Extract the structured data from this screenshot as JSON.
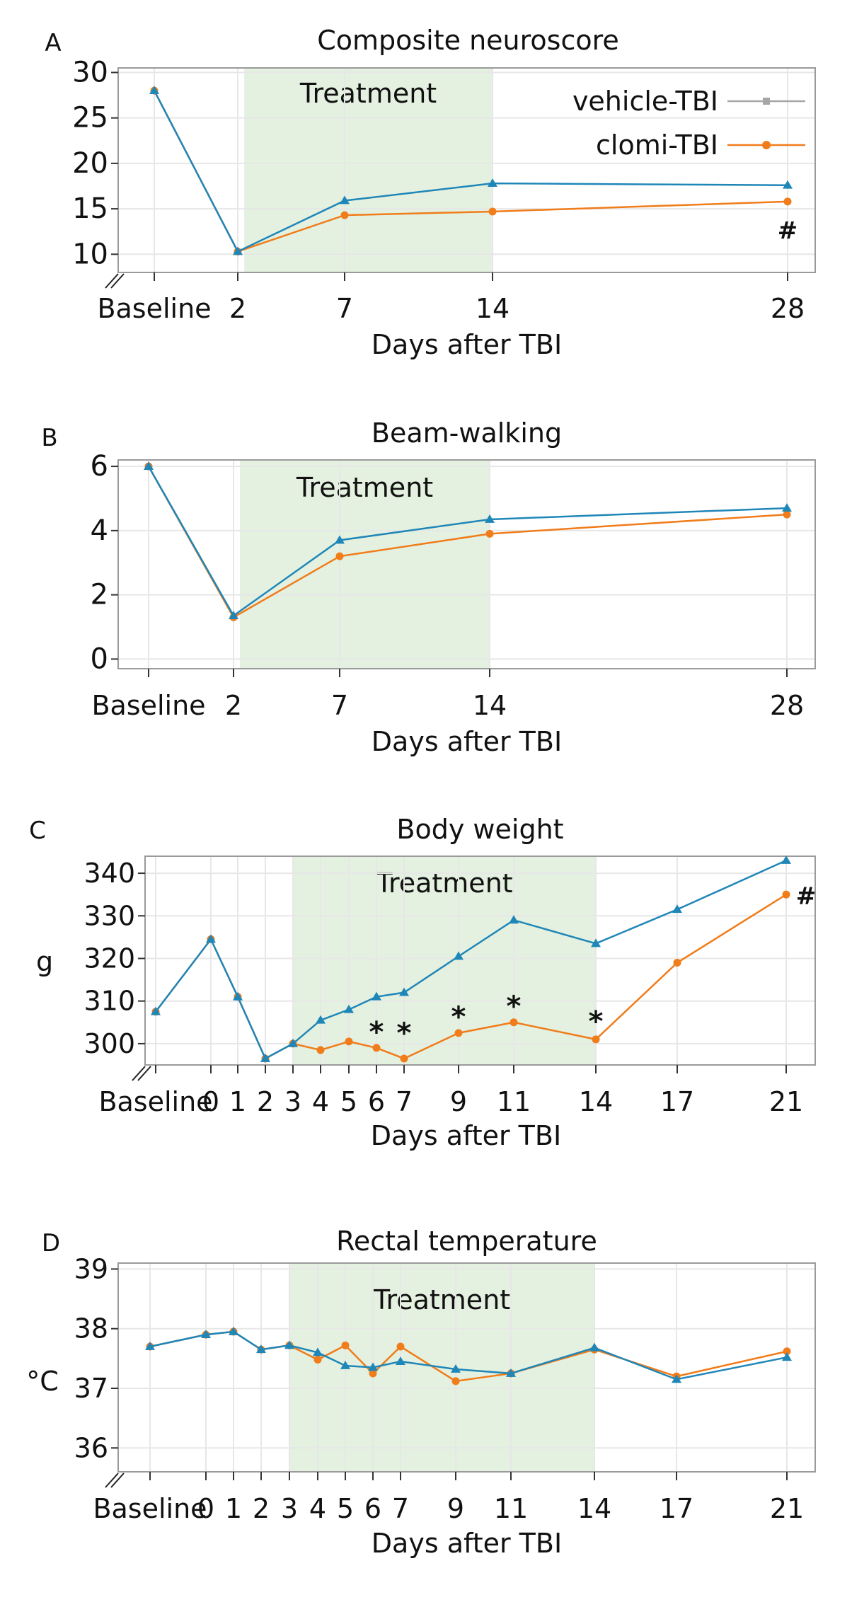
{
  "colors": {
    "vehicle": "#1f86b8",
    "clomi": "#f07c1a",
    "treatment": "#e4f1e0",
    "frame": "#9a9a9a",
    "grid": "#e7e7e7",
    "legend_vehicle": "#a6a6a6"
  },
  "legend": {
    "vehicle": "vehicle-TBI",
    "clomi": "clomi-TBI"
  },
  "chart_data": [
    {
      "type": "line",
      "panel": "A",
      "title": "Composite neuroscore",
      "xlabel": "Days after TBI",
      "ylabel": "",
      "treatment_label": "Treatment",
      "treatment_span": [
        2.3,
        14
      ],
      "x": [
        -2,
        2,
        7,
        14,
        28
      ],
      "xticks": [
        -2,
        2,
        7,
        14,
        28
      ],
      "xtick_labels": [
        "Baseline",
        "2",
        "7",
        "14",
        "28"
      ],
      "ylim": [
        8,
        30.5
      ],
      "yticks": [
        10,
        15,
        20,
        25,
        30
      ],
      "ytick_labels": [
        "10",
        "15",
        "20",
        "25",
        "30"
      ],
      "axis_break": true,
      "series": [
        {
          "name": "vehicle-TBI",
          "marker": "triangle",
          "values": [
            28,
            10.3,
            15.9,
            17.8,
            17.6
          ]
        },
        {
          "name": "clomi-TBI",
          "marker": "circle",
          "values": [
            28,
            10.3,
            14.3,
            14.7,
            15.8
          ]
        }
      ],
      "annotations": [
        {
          "text": "#",
          "x": 28,
          "y": 12.8
        }
      ]
    },
    {
      "type": "line",
      "panel": "B",
      "title": "Beam-walking",
      "xlabel": "Days after TBI",
      "ylabel": "",
      "treatment_label": "Treatment",
      "treatment_span": [
        2.3,
        14
      ],
      "x": [
        -2,
        2,
        7,
        14,
        28
      ],
      "xticks": [
        -2,
        2,
        7,
        14,
        28
      ],
      "xtick_labels": [
        "Baseline",
        "2",
        "7",
        "14",
        "28"
      ],
      "ylim": [
        -0.3,
        6.2
      ],
      "yticks": [
        0,
        2,
        4,
        6
      ],
      "ytick_labels": [
        "0",
        "2",
        "4",
        "6"
      ],
      "axis_break": false,
      "series": [
        {
          "name": "vehicle-TBI",
          "marker": "triangle",
          "values": [
            6,
            1.35,
            3.7,
            4.35,
            4.7
          ]
        },
        {
          "name": "clomi-TBI",
          "marker": "circle",
          "values": [
            6,
            1.3,
            3.2,
            3.9,
            4.5
          ]
        }
      ],
      "annotations": []
    },
    {
      "type": "line",
      "panel": "C",
      "title": "Body weight",
      "xlabel": "Days after TBI",
      "ylabel": "g",
      "treatment_label": "Treatment",
      "treatment_span": [
        3,
        14
      ],
      "x": [
        -2,
        0,
        1,
        2,
        3,
        4,
        5,
        6,
        7,
        9,
        11,
        14,
        17,
        21
      ],
      "xticks": [
        -2,
        0,
        1,
        2,
        3,
        4,
        5,
        6,
        7,
        9,
        11,
        14,
        17,
        21
      ],
      "xtick_labels": [
        "Baseline",
        "0",
        "1",
        "2",
        "3",
        "4",
        "5",
        "6",
        "7",
        "9",
        "11",
        "14",
        "17",
        "21"
      ],
      "ylim": [
        295,
        344
      ],
      "yticks": [
        300,
        310,
        320,
        330,
        340
      ],
      "ytick_labels": [
        "300",
        "310",
        "320",
        "330",
        "340"
      ],
      "axis_break": true,
      "series": [
        {
          "name": "vehicle-TBI",
          "marker": "triangle",
          "values": [
            307.5,
            324.5,
            311,
            296.5,
            300,
            305.5,
            308,
            311,
            312,
            320.5,
            329,
            323.5,
            331.5,
            343
          ]
        },
        {
          "name": "clomi-TBI",
          "marker": "circle",
          "values": [
            307.5,
            324.5,
            311,
            296.5,
            300,
            298.5,
            300.5,
            299,
            296.5,
            302.5,
            305,
            301,
            319,
            335
          ]
        }
      ],
      "annotations": [
        {
          "text": "*",
          "x": 6,
          "y": 304.5
        },
        {
          "text": "*",
          "x": 7,
          "y": 304.2
        },
        {
          "text": "*",
          "x": 9,
          "y": 308
        },
        {
          "text": "*",
          "x": 11,
          "y": 310.5
        },
        {
          "text": "*",
          "x": 14,
          "y": 307
        },
        {
          "text": "#",
          "x": 21.8,
          "y": 335
        }
      ]
    },
    {
      "type": "line",
      "panel": "D",
      "title": "Rectal temperature",
      "xlabel": "Days after TBI",
      "ylabel": "°C",
      "treatment_label": "Treatment",
      "treatment_span": [
        3,
        14
      ],
      "x": [
        -2,
        0,
        1,
        2,
        3,
        4,
        5,
        6,
        7,
        9,
        11,
        14,
        17,
        21
      ],
      "xticks": [
        -2,
        0,
        1,
        2,
        3,
        4,
        5,
        6,
        7,
        9,
        11,
        14,
        17,
        21
      ],
      "xtick_labels": [
        "Baseline",
        "0",
        "1",
        "2",
        "3",
        "4",
        "5",
        "6",
        "7",
        "9",
        "11",
        "14",
        "17",
        "21"
      ],
      "ylim": [
        35.6,
        39.1
      ],
      "yticks": [
        36,
        37,
        38,
        39
      ],
      "ytick_labels": [
        "36",
        "37",
        "38",
        "39"
      ],
      "axis_break": true,
      "series": [
        {
          "name": "vehicle-TBI",
          "marker": "triangle",
          "values": [
            37.7,
            37.9,
            37.95,
            37.65,
            37.72,
            37.6,
            37.38,
            37.35,
            37.45,
            37.32,
            37.25,
            37.68,
            37.15,
            37.52
          ]
        },
        {
          "name": "clomi-TBI",
          "marker": "circle",
          "values": [
            37.7,
            37.9,
            37.95,
            37.65,
            37.72,
            37.48,
            37.72,
            37.25,
            37.7,
            37.12,
            37.25,
            37.65,
            37.2,
            37.62
          ]
        }
      ],
      "annotations": []
    }
  ]
}
